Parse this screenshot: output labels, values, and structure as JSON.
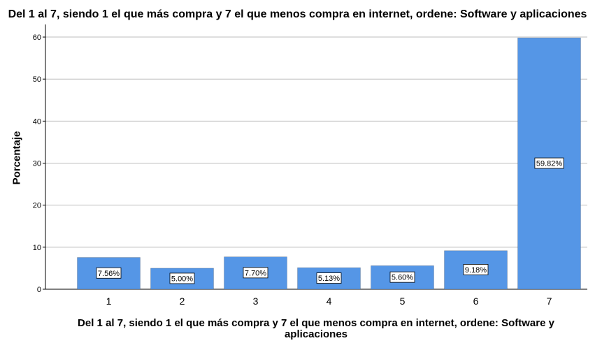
{
  "chart_data": {
    "type": "bar",
    "title": "Del 1 al 7, siendo 1 el que más compra y 7 el que menos compra en internet, ordene: Software y aplicaciones",
    "xlabel": "Del 1 al 7, siendo 1 el que más compra y 7 el que menos compra en internet, ordene: Software y aplicaciones",
    "ylabel": "Porcentaje",
    "categories": [
      "1",
      "2",
      "3",
      "4",
      "5",
      "6",
      "7"
    ],
    "values": [
      7.56,
      5.0,
      7.7,
      5.13,
      5.6,
      9.18,
      59.82
    ],
    "data_labels": [
      "7.56%",
      "5.00%",
      "7.70%",
      "5.13%",
      "5.60%",
      "9.18%",
      "59.82%"
    ],
    "ylim": [
      0,
      63
    ],
    "yticks": [
      0,
      10,
      20,
      30,
      40,
      50,
      60
    ],
    "grid": true,
    "bar_color": "#5596E6"
  }
}
